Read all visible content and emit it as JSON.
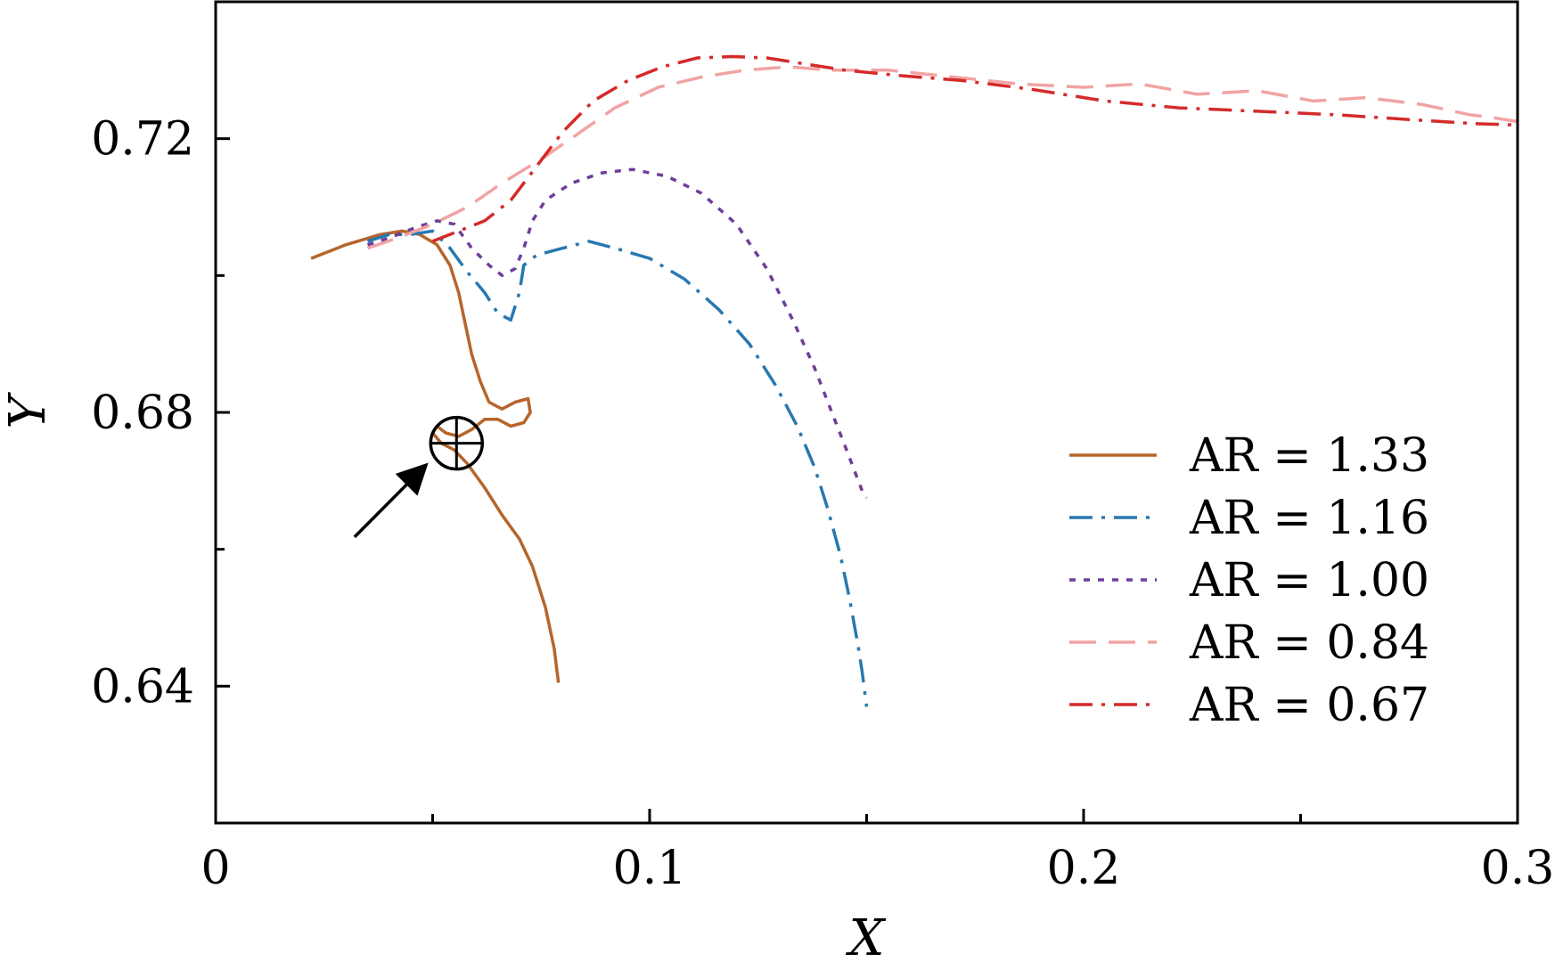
{
  "chart_data": {
    "type": "line",
    "xlabel": "X",
    "ylabel": "Y",
    "xlim": [
      0,
      0.3
    ],
    "ylim": [
      0.62,
      0.74
    ],
    "x_ticks": [
      0,
      0.1,
      0.2,
      0.3
    ],
    "x_tick_labels": [
      "0",
      "0.1",
      "0.2",
      "0.3"
    ],
    "x_minor_ticks": [
      0.05,
      0.15,
      0.25
    ],
    "y_ticks": [
      0.64,
      0.68,
      0.72
    ],
    "y_tick_labels": [
      "0.64",
      "0.68",
      "0.72"
    ],
    "y_minor_ticks": [
      0.66,
      0.7
    ],
    "grid": false,
    "legend_position": "right",
    "series": [
      {
        "name": "AR = 1.33",
        "color": "#b5652b",
        "dash": "solid",
        "points": [
          [
            0.022,
            0.7025
          ],
          [
            0.03,
            0.7045
          ],
          [
            0.038,
            0.706
          ],
          [
            0.043,
            0.7065
          ],
          [
            0.047,
            0.706
          ],
          [
            0.051,
            0.7045
          ],
          [
            0.054,
            0.7015
          ],
          [
            0.056,
            0.6975
          ],
          [
            0.0575,
            0.693
          ],
          [
            0.059,
            0.6885
          ],
          [
            0.061,
            0.6845
          ],
          [
            0.063,
            0.6815
          ],
          [
            0.066,
            0.6805
          ],
          [
            0.069,
            0.6815
          ],
          [
            0.072,
            0.682
          ],
          [
            0.0725,
            0.68
          ],
          [
            0.071,
            0.6785
          ],
          [
            0.068,
            0.678
          ],
          [
            0.065,
            0.679
          ],
          [
            0.062,
            0.679
          ],
          [
            0.059,
            0.6775
          ],
          [
            0.056,
            0.6765
          ],
          [
            0.053,
            0.677
          ],
          [
            0.051,
            0.678
          ],
          [
            0.05,
            0.677
          ],
          [
            0.052,
            0.6755
          ],
          [
            0.055,
            0.6745
          ],
          [
            0.058,
            0.6725
          ],
          [
            0.062,
            0.669
          ],
          [
            0.066,
            0.665
          ],
          [
            0.07,
            0.6615
          ],
          [
            0.073,
            0.6575
          ],
          [
            0.076,
            0.6515
          ],
          [
            0.078,
            0.6455
          ],
          [
            0.079,
            0.6405
          ]
        ]
      },
      {
        "name": "AR = 1.16",
        "color": "#2878b0",
        "dash": "dashdot",
        "points": [
          [
            0.035,
            0.705
          ],
          [
            0.04,
            0.706
          ],
          [
            0.045,
            0.706
          ],
          [
            0.05,
            0.7065
          ],
          [
            0.054,
            0.704
          ],
          [
            0.058,
            0.7005
          ],
          [
            0.062,
            0.6975
          ],
          [
            0.065,
            0.6945
          ],
          [
            0.068,
            0.6935
          ],
          [
            0.07,
            0.6975
          ],
          [
            0.071,
            0.7015
          ],
          [
            0.074,
            0.703
          ],
          [
            0.08,
            0.704
          ],
          [
            0.086,
            0.705
          ],
          [
            0.092,
            0.704
          ],
          [
            0.1,
            0.7025
          ],
          [
            0.108,
            0.6995
          ],
          [
            0.116,
            0.695
          ],
          [
            0.123,
            0.69
          ],
          [
            0.129,
            0.684
          ],
          [
            0.134,
            0.678
          ],
          [
            0.138,
            0.672
          ],
          [
            0.141,
            0.666
          ],
          [
            0.144,
            0.659
          ],
          [
            0.146,
            0.653
          ],
          [
            0.148,
            0.646
          ],
          [
            0.149,
            0.642
          ],
          [
            0.15,
            0.637
          ]
        ]
      },
      {
        "name": "AR = 1.00",
        "color": "#6e3e9a",
        "dash": "dotted",
        "points": [
          [
            0.035,
            0.7045
          ],
          [
            0.04,
            0.7055
          ],
          [
            0.046,
            0.707
          ],
          [
            0.051,
            0.708
          ],
          [
            0.055,
            0.7075
          ],
          [
            0.059,
            0.704
          ],
          [
            0.063,
            0.7015
          ],
          [
            0.066,
            0.7
          ],
          [
            0.069,
            0.701
          ],
          [
            0.071,
            0.704
          ],
          [
            0.073,
            0.708
          ],
          [
            0.076,
            0.711
          ],
          [
            0.082,
            0.7135
          ],
          [
            0.089,
            0.715
          ],
          [
            0.096,
            0.7155
          ],
          [
            0.104,
            0.7145
          ],
          [
            0.112,
            0.712
          ],
          [
            0.12,
            0.7075
          ],
          [
            0.127,
            0.701
          ],
          [
            0.133,
            0.6935
          ],
          [
            0.138,
            0.6865
          ],
          [
            0.142,
            0.68
          ],
          [
            0.146,
            0.6735
          ],
          [
            0.149,
            0.6685
          ],
          [
            0.15,
            0.6675
          ]
        ]
      },
      {
        "name": "AR = 0.84",
        "color": "#f2a3a3",
        "dash": "dashed",
        "points": [
          [
            0.035,
            0.704
          ],
          [
            0.042,
            0.7055
          ],
          [
            0.05,
            0.7075
          ],
          [
            0.058,
            0.71
          ],
          [
            0.066,
            0.7135
          ],
          [
            0.075,
            0.717
          ],
          [
            0.083,
            0.7205
          ],
          [
            0.092,
            0.7245
          ],
          [
            0.102,
            0.7275
          ],
          [
            0.112,
            0.729
          ],
          [
            0.122,
            0.73
          ],
          [
            0.132,
            0.7305
          ],
          [
            0.142,
            0.73
          ],
          [
            0.155,
            0.73
          ],
          [
            0.17,
            0.729
          ],
          [
            0.185,
            0.728
          ],
          [
            0.2,
            0.7275
          ],
          [
            0.213,
            0.728
          ],
          [
            0.226,
            0.7265
          ],
          [
            0.24,
            0.727
          ],
          [
            0.253,
            0.7255
          ],
          [
            0.265,
            0.726
          ],
          [
            0.278,
            0.725
          ],
          [
            0.289,
            0.7235
          ],
          [
            0.295,
            0.723
          ],
          [
            0.3,
            0.7225
          ]
        ]
      },
      {
        "name": "AR = 0.67",
        "color": "#d42a2a",
        "dash": "dashdot",
        "points": [
          [
            0.05,
            0.705
          ],
          [
            0.056,
            0.7065
          ],
          [
            0.062,
            0.708
          ],
          [
            0.068,
            0.711
          ],
          [
            0.074,
            0.716
          ],
          [
            0.08,
            0.721
          ],
          [
            0.087,
            0.7255
          ],
          [
            0.095,
            0.7285
          ],
          [
            0.103,
            0.7305
          ],
          [
            0.111,
            0.7318
          ],
          [
            0.119,
            0.732
          ],
          [
            0.127,
            0.7318
          ],
          [
            0.135,
            0.731
          ],
          [
            0.145,
            0.73
          ],
          [
            0.158,
            0.7292
          ],
          [
            0.172,
            0.7285
          ],
          [
            0.188,
            0.7272
          ],
          [
            0.205,
            0.7255
          ],
          [
            0.222,
            0.7245
          ],
          [
            0.24,
            0.724
          ],
          [
            0.258,
            0.7235
          ],
          [
            0.275,
            0.7228
          ],
          [
            0.29,
            0.7222
          ],
          [
            0.3,
            0.722
          ]
        ]
      }
    ],
    "annotation": {
      "marker_x": 0.0555,
      "marker_y": 0.6755,
      "arrow_from": [
        0.032,
        0.6618
      ],
      "arrow_to": [
        0.048,
        0.672
      ]
    }
  }
}
